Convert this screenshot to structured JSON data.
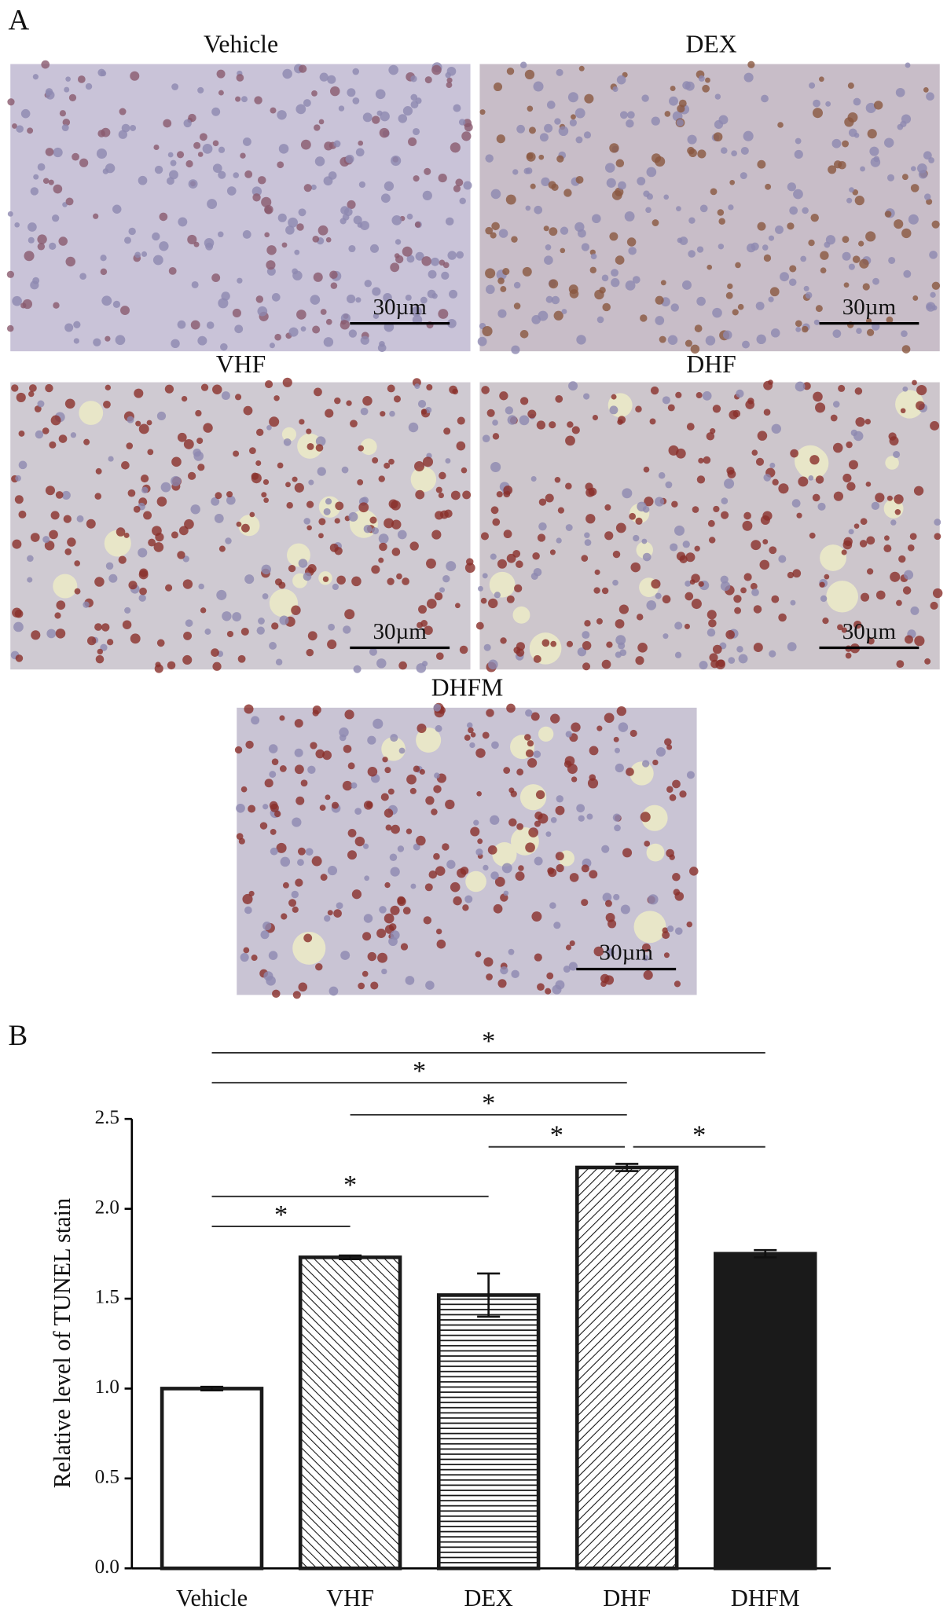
{
  "panel_labels": [
    "A",
    "B"
  ],
  "micrographs": [
    {
      "title": "Vehicle",
      "scale": "30µm"
    },
    {
      "title": "DEX",
      "scale": "30µm"
    },
    {
      "title": "VHF",
      "scale": "30µm"
    },
    {
      "title": "DHF",
      "scale": "30µm"
    },
    {
      "title": "DHFM",
      "scale": "30µm"
    }
  ],
  "chart_data": {
    "type": "bar",
    "y_label": "Relative level of TUNEL stain",
    "categories": [
      "Vehicle",
      "VHF",
      "DEX",
      "DHF",
      "DHFM"
    ],
    "values": [
      1.0,
      1.73,
      1.52,
      2.23,
      1.75
    ],
    "errors": [
      0.01,
      0.01,
      0.12,
      0.02,
      0.02
    ],
    "patterns": [
      "none",
      "backslash",
      "horizontal",
      "slash",
      "solid"
    ],
    "color": "#1a1a1a",
    "ylim": [
      0,
      2.5
    ],
    "yticks": [
      {
        "value": 0,
        "label": "0.0"
      },
      0.5,
      {
        "value": 1,
        "label": "1.0"
      },
      1.5,
      {
        "value": 2,
        "label": "2.0"
      },
      2.5
    ],
    "significance": [
      {
        "groups": [
          "Vehicle",
          "DHFM"
        ],
        "label": "*"
      },
      {
        "groups": [
          "Vehicle",
          "DHF"
        ],
        "label": "*"
      },
      {
        "groups": [
          "VHF",
          "DHF"
        ],
        "label": "*"
      },
      {
        "groups": [
          "DEX",
          "DHF"
        ],
        "label": "*"
      },
      {
        "groups": [
          "DHF",
          "DHFM"
        ],
        "label": "*"
      },
      {
        "groups": [
          "Vehicle",
          "DEX"
        ],
        "label": "*"
      },
      {
        "groups": [
          "Vehicle",
          "VHF"
        ],
        "label": "*"
      }
    ]
  }
}
